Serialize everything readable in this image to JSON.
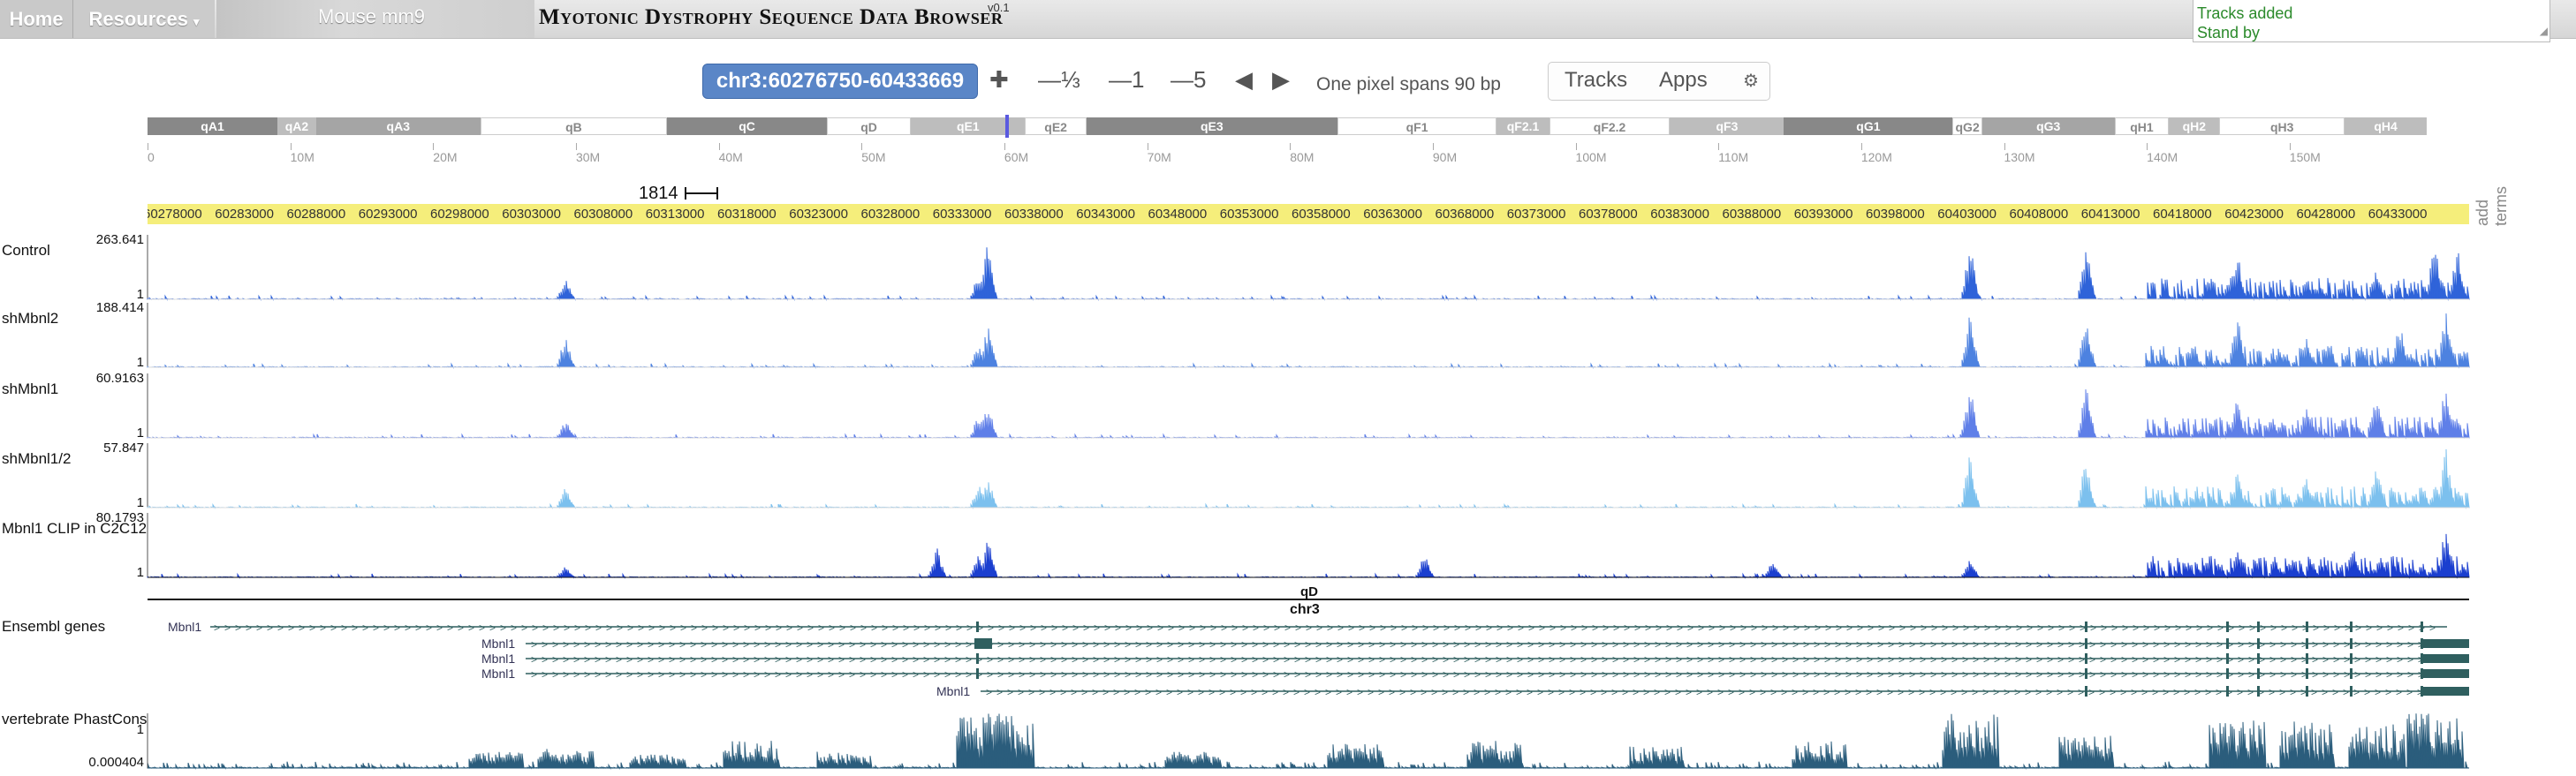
{
  "nav": {
    "home": "Home",
    "resources": "Resources",
    "resources_chevron": "▾",
    "assembly": "Mouse mm9"
  },
  "app": {
    "title": "Myotonic Dystrophy Sequence Data Browser",
    "version": "v0.1"
  },
  "status": {
    "lines": [
      "Tracks added",
      "Stand by"
    ]
  },
  "location": {
    "value": "chr3:60276750-60433669"
  },
  "controls": {
    "zoom_in": "✚",
    "zoom_third": "—⅓",
    "zoom_1": "—1",
    "zoom_5": "—5",
    "pan_left": "◀",
    "pan_right": "▶",
    "pixel_info": "One pixel spans 90 bp"
  },
  "menu": {
    "tracks": "Tracks",
    "apps": "Apps",
    "gear_icon": "⚙"
  },
  "ideogram": {
    "current_band": "qD",
    "bands": [
      {
        "name": "qA1",
        "start": 0,
        "end": 5.7,
        "color": "#888888",
        "text": "#ffffff"
      },
      {
        "name": "qA2",
        "start": 5.7,
        "end": 7.4,
        "color": "#bdbdbd",
        "text": "#ffffff"
      },
      {
        "name": "qA3",
        "start": 7.4,
        "end": 14.6,
        "color": "#a5a5a5",
        "text": "#ffffff"
      },
      {
        "name": "qB",
        "start": 14.6,
        "end": 22.8,
        "color": "#ffffff",
        "text": "#888888"
      },
      {
        "name": "qC",
        "start": 22.8,
        "end": 29.8,
        "color": "#888888",
        "text": "#ffffff"
      },
      {
        "name": "qD",
        "start": 29.8,
        "end": 33.5,
        "color": "#ffffff",
        "text": "#888888"
      },
      {
        "name": "qE1",
        "start": 33.5,
        "end": 38.5,
        "color": "#bdbdbd",
        "text": "#ffffff"
      },
      {
        "name": "qE2",
        "start": 38.5,
        "end": 41.2,
        "color": "#ffffff",
        "text": "#888888"
      },
      {
        "name": "qE3",
        "start": 41.2,
        "end": 52.2,
        "color": "#888888",
        "text": "#ffffff"
      },
      {
        "name": "qF1",
        "start": 52.2,
        "end": 59.2,
        "color": "#ffffff",
        "text": "#888888"
      },
      {
        "name": "qF2.1",
        "start": 59.2,
        "end": 61.5,
        "color": "#bdbdbd",
        "text": "#ffffff"
      },
      {
        "name": "qF2.2",
        "start": 61.5,
        "end": 66.8,
        "color": "#ffffff",
        "text": "#888888"
      },
      {
        "name": "qF3",
        "start": 66.8,
        "end": 71.8,
        "color": "#bdbdbd",
        "text": "#ffffff"
      },
      {
        "name": "qG1",
        "start": 71.8,
        "end": 79.2,
        "color": "#888888",
        "text": "#ffffff"
      },
      {
        "name": "qG2",
        "start": 79.2,
        "end": 80.5,
        "color": "#ffffff",
        "text": "#888888"
      },
      {
        "name": "qG3",
        "start": 80.5,
        "end": 86.3,
        "color": "#a5a5a5",
        "text": "#ffffff"
      },
      {
        "name": "qH1",
        "start": 86.3,
        "end": 88.7,
        "color": "#ffffff",
        "text": "#888888"
      },
      {
        "name": "qH2",
        "start": 88.7,
        "end": 90.9,
        "color": "#bdbdbd",
        "text": "#ffffff"
      },
      {
        "name": "qH3",
        "start": 90.9,
        "end": 96.4,
        "color": "#ffffff",
        "text": "#888888"
      },
      {
        "name": "qH4",
        "start": 96.4,
        "end": 100,
        "color": "#bdbdbd",
        "text": "#ffffff"
      }
    ]
  },
  "overview_axis": {
    "labels": [
      "0",
      "10M",
      "20M",
      "30M",
      "40M",
      "50M",
      "60M",
      "70M",
      "80M",
      "90M",
      "100M",
      "110M",
      "120M",
      "130M",
      "140M",
      "150M"
    ],
    "max_mb": 159.6
  },
  "scalebar": {
    "label": "1814"
  },
  "ruler": {
    "start": 60278000,
    "step": 5000,
    "count": 32
  },
  "add_terms": "add terms",
  "tracks": [
    {
      "name": "Control",
      "max": "263.641",
      "min": "1",
      "color": "#2f63d9"
    },
    {
      "name": "shMbnl2",
      "max": "188.414",
      "min": "1",
      "color": "#4d82e0"
    },
    {
      "name": "shMbnl1",
      "max": "60.9163",
      "min": "1",
      "color": "#5f7fe8"
    },
    {
      "name": "shMbnl1/2",
      "max": "57.847",
      "min": "1",
      "color": "#7cc0ee"
    },
    {
      "name": "Mbnl1 CLIP in C2C12",
      "max": "80.1793",
      "min": "1",
      "color": "#1b3fcf"
    }
  ],
  "chromosome": {
    "band": "qD",
    "name": "chr3"
  },
  "genes": {
    "track_name": "Ensembl genes",
    "labels": [
      "Mbnl1",
      "Mbnl1",
      "Mbnl1",
      "Mbnl1",
      "Mbnl1"
    ]
  },
  "conservation": {
    "name": "vertebrate PhastCons",
    "max": "1",
    "min": "0.000404",
    "color": "#2b5d7c"
  }
}
